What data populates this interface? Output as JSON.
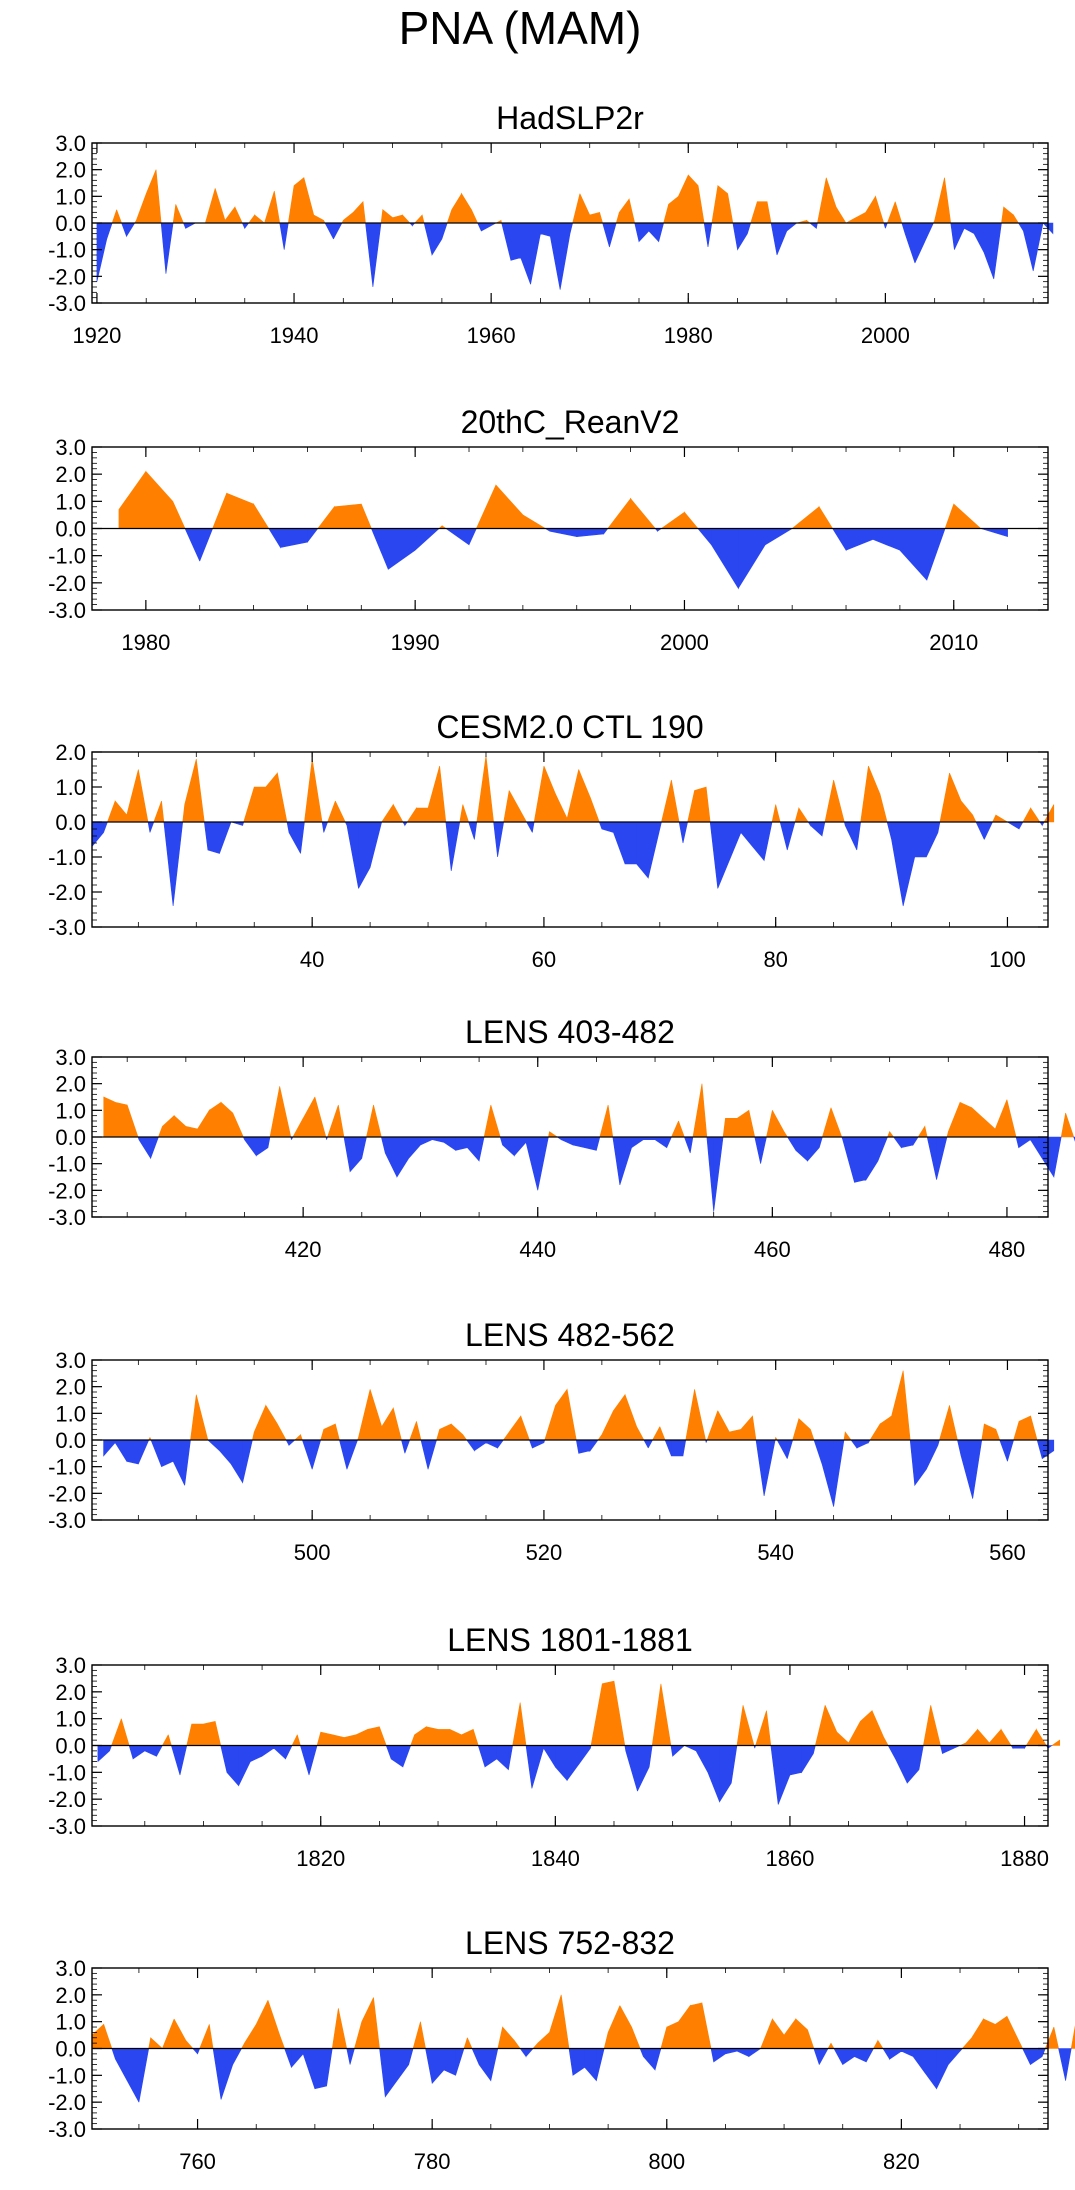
{
  "figure_title": "PNA (MAM)",
  "colors": {
    "positive": "#ff8000",
    "negative": "#2a46f0",
    "axis": "#000000",
    "zero_line": "#000000"
  },
  "chart_data": [
    {
      "type": "area",
      "title": "HadSLP2r",
      "xlim": [
        1919.5,
        2016.5
      ],
      "ylim": [
        -3,
        3
      ],
      "x_ticks": [
        1920,
        1940,
        1960,
        1980,
        2000
      ],
      "y_ticks": [
        "3.0",
        "2.0",
        "1.0",
        "0.0",
        "-1.0",
        "-2.0",
        "-3.0"
      ],
      "x_start": 1920,
      "values": [
        -2.2,
        -0.6,
        0.5,
        -0.5,
        0.1,
        1.1,
        2.0,
        -1.9,
        0.7,
        -0.2,
        0.0,
        0.0,
        1.3,
        0.1,
        0.6,
        -0.2,
        0.3,
        0.0,
        1.2,
        -1.0,
        1.4,
        1.7,
        0.3,
        0.1,
        -0.6,
        0.1,
        0.4,
        0.8,
        -2.4,
        0.5,
        0.2,
        0.3,
        -0.1,
        0.3,
        -1.2,
        -0.6,
        0.5,
        1.1,
        0.5,
        -0.3,
        -0.1,
        0.1,
        -1.4,
        -1.3,
        -2.3,
        -0.4,
        -0.5,
        -2.5,
        -0.4,
        1.1,
        0.3,
        0.4,
        -0.9,
        0.4,
        0.9,
        -0.7,
        -0.3,
        -0.7,
        0.7,
        1.0,
        1.8,
        1.4,
        -0.9,
        1.4,
        1.1,
        -1.0,
        -0.4,
        0.8,
        0.8,
        -1.2,
        -0.3,
        0.0,
        0.1,
        -0.2,
        1.7,
        0.6,
        0.0,
        0.2,
        0.4,
        1.0,
        -0.2,
        0.8,
        -0.4,
        -1.5,
        -0.7,
        0.1,
        1.7,
        -1.0,
        -0.2,
        -0.4,
        -1.1,
        -2.1,
        0.6,
        0.3,
        -0.3,
        -1.8,
        0.0,
        -0.4
      ]
    },
    {
      "type": "area",
      "title": "20thC_ReanV2",
      "xlim": [
        1978,
        2013.5
      ],
      "ylim": [
        -3,
        3
      ],
      "x_ticks": [
        1980,
        1990,
        2000,
        2010
      ],
      "y_ticks": [
        "3.0",
        "2.0",
        "1.0",
        "0.0",
        "-1.0",
        "-2.0",
        "-3.0"
      ],
      "x_start": 1979,
      "values": [
        0.7,
        2.1,
        1.0,
        -1.2,
        1.3,
        0.9,
        -0.7,
        -0.5,
        0.8,
        0.9,
        -1.5,
        -0.8,
        0.1,
        -0.6,
        1.6,
        0.5,
        -0.1,
        -0.3,
        -0.2,
        1.1,
        -0.1,
        0.6,
        -0.6,
        -2.2,
        -0.6,
        0.0,
        0.8,
        -0.8,
        -0.4,
        -0.8,
        -1.9,
        0.9,
        0.0,
        -0.3
      ]
    },
    {
      "type": "area",
      "title": "CESM2.0 CTL 190",
      "xlim": [
        21,
        103.5
      ],
      "ylim": [
        -3,
        2
      ],
      "x_ticks": [
        40,
        60,
        80,
        100
      ],
      "y_ticks": [
        "2.0",
        "1.0",
        "0.0",
        "-1.0",
        "-2.0",
        "-3.0"
      ],
      "x_start": 21,
      "values": [
        -0.7,
        -0.3,
        0.6,
        0.2,
        1.5,
        -0.3,
        0.6,
        -2.4,
        0.5,
        1.8,
        -0.8,
        -0.9,
        0.0,
        -0.1,
        1.0,
        1.0,
        1.4,
        -0.3,
        -0.9,
        1.8,
        -0.3,
        0.6,
        -0.1,
        -1.9,
        -1.3,
        0.0,
        0.5,
        -0.1,
        0.4,
        0.4,
        1.6,
        -1.4,
        0.5,
        -0.5,
        1.9,
        -1.0,
        0.9,
        0.3,
        -0.3,
        1.6,
        0.8,
        0.1,
        1.5,
        0.7,
        -0.2,
        -0.3,
        -1.2,
        -1.2,
        -1.6,
        -0.2,
        1.2,
        -0.6,
        0.9,
        1.0,
        -1.9,
        -1.1,
        -0.3,
        -0.7,
        -1.1,
        0.5,
        -0.8,
        0.4,
        -0.1,
        -0.4,
        1.2,
        -0.1,
        -0.8,
        1.6,
        0.8,
        -0.5,
        -2.4,
        -1.0,
        -1.0,
        -0.3,
        1.4,
        0.6,
        0.2,
        -0.5,
        0.2,
        0.0,
        -0.2,
        0.4,
        -0.1,
        0.5
      ]
    },
    {
      "type": "area",
      "title": "LENS 403-482",
      "xlim": [
        402,
        483.5
      ],
      "ylim": [
        -3,
        3
      ],
      "x_ticks": [
        420,
        440,
        460,
        480
      ],
      "y_ticks": [
        "3.0",
        "2.0",
        "1.0",
        "0.0",
        "-1.0",
        "-2.0",
        "-3.0"
      ],
      "x_start": 403,
      "values": [
        1.5,
        1.3,
        1.2,
        -0.1,
        -0.8,
        0.4,
        0.8,
        0.4,
        0.3,
        1.0,
        1.3,
        0.9,
        -0.1,
        -0.7,
        -0.4,
        1.9,
        -0.1,
        0.7,
        1.5,
        -0.1,
        1.2,
        -1.3,
        -0.8,
        1.2,
        -0.6,
        -1.5,
        -0.8,
        -0.3,
        -0.1,
        -0.2,
        -0.5,
        -0.4,
        -0.9,
        1.2,
        -0.3,
        -0.7,
        -0.2,
        -2.0,
        0.2,
        -0.1,
        -0.3,
        -0.4,
        -0.5,
        1.2,
        -1.8,
        -0.4,
        -0.1,
        -0.1,
        -0.4,
        0.6,
        -0.6,
        2.0,
        -2.8,
        0.7,
        0.7,
        1.0,
        -1.0,
        1.0,
        0.2,
        -0.5,
        -0.9,
        -0.4,
        1.1,
        -0.1,
        -1.7,
        -1.6,
        -0.9,
        0.2,
        -0.4,
        -0.3,
        0.4,
        -1.6,
        0.2,
        1.3,
        1.1,
        0.7,
        0.3,
        1.4,
        -0.4,
        -0.1,
        -0.8,
        -1.5,
        0.9,
        -0.4
      ]
    },
    {
      "type": "area",
      "title": "LENS 482-562",
      "xlim": [
        481,
        563.5
      ],
      "ylim": [
        -3,
        3
      ],
      "x_ticks": [
        500,
        520,
        540,
        560
      ],
      "y_ticks": [
        "3.0",
        "2.0",
        "1.0",
        "0.0",
        "-1.0",
        "-2.0",
        "-3.0"
      ],
      "x_start": 482,
      "values": [
        -0.6,
        -0.1,
        -0.8,
        -0.9,
        0.1,
        -1.0,
        -0.8,
        -1.7,
        1.7,
        0.0,
        -0.4,
        -0.9,
        -1.6,
        0.3,
        1.3,
        0.6,
        -0.2,
        0.2,
        -1.1,
        0.4,
        0.6,
        -1.1,
        0.1,
        1.9,
        0.5,
        1.2,
        -0.5,
        0.7,
        -1.1,
        0.4,
        0.6,
        0.2,
        -0.4,
        -0.1,
        -0.3,
        0.3,
        0.9,
        -0.3,
        -0.1,
        1.3,
        1.9,
        -0.5,
        -0.4,
        0.2,
        1.1,
        1.7,
        0.5,
        -0.3,
        0.5,
        -0.6,
        -0.6,
        1.9,
        -0.1,
        1.1,
        0.3,
        0.4,
        0.9,
        -2.1,
        0.1,
        -0.7,
        0.8,
        0.4,
        -0.9,
        -2.5,
        0.3,
        -0.3,
        -0.1,
        0.6,
        0.9,
        2.6,
        -1.7,
        -1.1,
        -0.2,
        1.3,
        -0.6,
        -2.2,
        0.6,
        0.4,
        -0.8,
        0.7,
        0.9,
        -0.7,
        -0.4
      ]
    },
    {
      "type": "area",
      "title": "LENS 1801-1881",
      "xlim": [
        1800.5,
        1882
      ],
      "ylim": [
        -3,
        3
      ],
      "x_ticks": [
        1820,
        1840,
        1860,
        1880
      ],
      "y_ticks": [
        "3.0",
        "2.0",
        "1.0",
        "0.0",
        "-1.0",
        "-2.0",
        "-3.0"
      ],
      "x_start": 1801,
      "values": [
        -0.6,
        -0.2,
        1.0,
        -0.5,
        -0.2,
        -0.4,
        0.4,
        -1.1,
        0.8,
        0.8,
        0.9,
        -1.0,
        -1.5,
        -0.6,
        -0.4,
        -0.1,
        -0.5,
        0.4,
        -1.1,
        0.5,
        0.4,
        0.3,
        0.4,
        0.6,
        0.7,
        -0.5,
        -0.8,
        0.4,
        0.7,
        0.6,
        0.6,
        0.4,
        0.6,
        -0.8,
        -0.5,
        -0.9,
        1.6,
        -1.6,
        -0.1,
        -0.8,
        -1.3,
        -0.7,
        -0.1,
        2.3,
        2.4,
        -0.2,
        -1.7,
        -0.8,
        2.3,
        -0.4,
        0.0,
        -0.2,
        -1.0,
        -2.1,
        -1.4,
        1.5,
        -0.1,
        1.3,
        -2.2,
        -1.1,
        -1.0,
        -0.3,
        1.5,
        0.5,
        0.1,
        0.9,
        1.3,
        0.3,
        -0.5,
        -1.4,
        -0.9,
        1.5,
        -0.3,
        -0.1,
        0.1,
        0.6,
        0.1,
        0.6,
        -0.1,
        -0.1,
        0.6,
        -0.1,
        0.2
      ]
    },
    {
      "type": "area",
      "title": "LENS 752-832",
      "xlim": [
        751,
        832.5
      ],
      "ylim": [
        -3,
        3
      ],
      "x_ticks": [
        760,
        780,
        800,
        820
      ],
      "y_ticks": [
        "3.0",
        "2.0",
        "1.0",
        "0.0",
        "-1.0",
        "-2.0",
        "-3.0"
      ],
      "x_start": 751,
      "values": [
        0.5,
        0.9,
        -0.4,
        -1.2,
        -2.0,
        0.4,
        0.0,
        1.1,
        0.3,
        -0.2,
        0.9,
        -1.9,
        -0.6,
        0.2,
        0.9,
        1.8,
        0.5,
        -0.7,
        -0.2,
        -1.5,
        -1.4,
        1.5,
        -0.6,
        1.0,
        1.9,
        -1.8,
        -1.2,
        -0.6,
        1.0,
        -1.3,
        -0.8,
        -1.0,
        0.4,
        -0.6,
        -1.2,
        0.8,
        0.3,
        -0.3,
        0.2,
        0.6,
        2.0,
        -1.0,
        -0.7,
        -1.2,
        0.6,
        1.6,
        0.8,
        -0.3,
        -0.8,
        0.8,
        1.0,
        1.6,
        1.7,
        -0.5,
        -0.2,
        -0.1,
        -0.3,
        0.0,
        1.1,
        0.5,
        1.1,
        0.7,
        -0.6,
        0.2,
        -0.6,
        -0.3,
        -0.5,
        0.3,
        -0.4,
        -0.1,
        -0.3,
        -0.9,
        -1.5,
        -0.6,
        -0.1,
        0.4,
        1.1,
        0.9,
        1.2,
        0.3,
        -0.6,
        -0.3,
        0.8,
        -1.2,
        1.3
      ]
    }
  ]
}
